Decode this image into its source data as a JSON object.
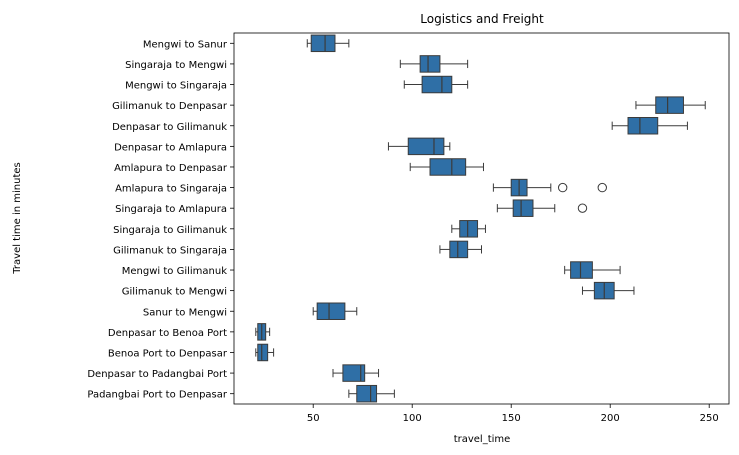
{
  "chart_data": {
    "type": "boxplot",
    "orientation": "horizontal",
    "title": "Logistics and Freight",
    "xlabel": "travel_time",
    "ylabel": "Travel time in minutes",
    "xlim": [
      10,
      260
    ],
    "xticks": [
      50,
      100,
      150,
      200,
      250
    ],
    "grid": false,
    "box_color": "#2f6fa6",
    "edge_color": "#3b3b3b",
    "categories": [
      "Mengwi to Sanur",
      "Singaraja to Mengwi",
      "Mengwi to Singaraja",
      "Gilimanuk to Denpasar",
      "Denpasar to Gilimanuk",
      "Denpasar to Amlapura",
      "Amlapura to Denpasar",
      "Amlapura to Singaraja",
      "Singaraja to Amlapura",
      "Singaraja to Gilimanuk",
      "Gilimanuk to Singaraja",
      "Mengwi to Gilimanuk",
      "Gilimanuk to Mengwi",
      "Sanur to Mengwi",
      "Denpasar to Benoa Port",
      "Benoa Port to Denpasar",
      "Denpasar to Padangbai Port",
      "Padangbai Port to Denpasar"
    ],
    "boxes": [
      {
        "whislo": 47,
        "q1": 49,
        "med": 56,
        "q3": 61,
        "whishi": 68,
        "fliers": []
      },
      {
        "whislo": 94,
        "q1": 104,
        "med": 108,
        "q3": 114,
        "whishi": 128,
        "fliers": []
      },
      {
        "whislo": 96,
        "q1": 105,
        "med": 115,
        "q3": 120,
        "whishi": 128,
        "fliers": []
      },
      {
        "whislo": 213,
        "q1": 223,
        "med": 229,
        "q3": 237,
        "whishi": 248,
        "fliers": []
      },
      {
        "whislo": 201,
        "q1": 209,
        "med": 215,
        "q3": 224,
        "whishi": 239,
        "fliers": []
      },
      {
        "whislo": 88,
        "q1": 98,
        "med": 111,
        "q3": 116,
        "whishi": 119,
        "fliers": []
      },
      {
        "whislo": 99,
        "q1": 109,
        "med": 120,
        "q3": 127,
        "whishi": 136,
        "fliers": []
      },
      {
        "whislo": 141,
        "q1": 150,
        "med": 154,
        "q3": 158,
        "whishi": 170,
        "fliers": [
          176,
          196
        ]
      },
      {
        "whislo": 143,
        "q1": 151,
        "med": 155,
        "q3": 161,
        "whishi": 172,
        "fliers": [
          186
        ]
      },
      {
        "whislo": 120,
        "q1": 124,
        "med": 128,
        "q3": 133,
        "whishi": 137,
        "fliers": []
      },
      {
        "whislo": 114,
        "q1": 119,
        "med": 123,
        "q3": 128,
        "whishi": 135,
        "fliers": []
      },
      {
        "whislo": 177,
        "q1": 180,
        "med": 185,
        "q3": 191,
        "whishi": 205,
        "fliers": []
      },
      {
        "whislo": 186,
        "q1": 192,
        "med": 197,
        "q3": 202,
        "whishi": 212,
        "fliers": []
      },
      {
        "whislo": 50,
        "q1": 52,
        "med": 58,
        "q3": 66,
        "whishi": 72,
        "fliers": []
      },
      {
        "whislo": 21,
        "q1": 22,
        "med": 24,
        "q3": 26,
        "whishi": 28,
        "fliers": []
      },
      {
        "whislo": 21,
        "q1": 22,
        "med": 24,
        "q3": 27,
        "whishi": 30,
        "fliers": []
      },
      {
        "whislo": 60,
        "q1": 65,
        "med": 74,
        "q3": 76,
        "whishi": 83,
        "fliers": []
      },
      {
        "whislo": 68,
        "q1": 72,
        "med": 79,
        "q3": 82,
        "whishi": 91,
        "fliers": []
      }
    ]
  }
}
